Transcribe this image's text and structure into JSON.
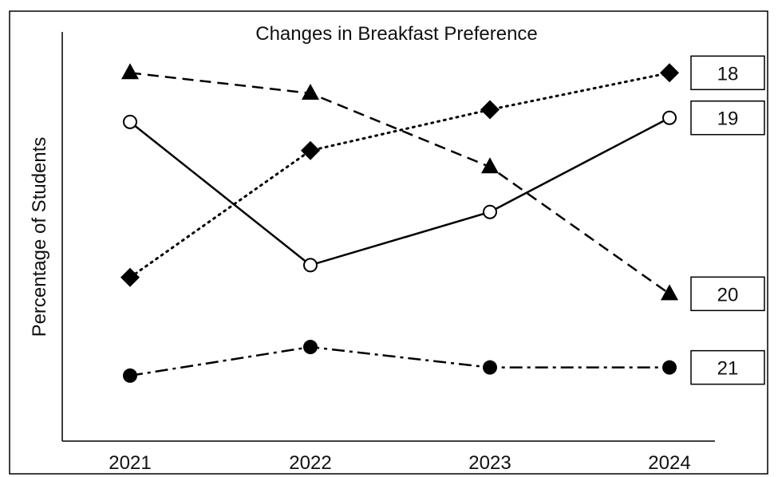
{
  "chart_data": {
    "type": "line",
    "title": "Changes in Breakfast Preference",
    "xlabel": "",
    "ylabel": "Percentage of Students",
    "categories": [
      "2021",
      "2022",
      "2023",
      "2024"
    ],
    "y_ticks_shown": false,
    "ylim": [
      0,
      100
    ],
    "grid": false,
    "series": [
      {
        "label": "18",
        "values": [
          40,
          71,
          81,
          90
        ],
        "line_style": "dotted",
        "marker": "diamond-filled",
        "color": "#000000"
      },
      {
        "label": "19",
        "values": [
          78,
          43,
          56,
          79
        ],
        "line_style": "solid",
        "marker": "circle-open",
        "color": "#000000"
      },
      {
        "label": "20",
        "values": [
          90,
          85,
          67,
          36
        ],
        "line_style": "dashed",
        "marker": "triangle-filled",
        "color": "#000000"
      },
      {
        "label": "21",
        "values": [
          16,
          23,
          18,
          18
        ],
        "line_style": "dash-dot",
        "marker": "circle-filled",
        "color": "#000000"
      }
    ]
  }
}
